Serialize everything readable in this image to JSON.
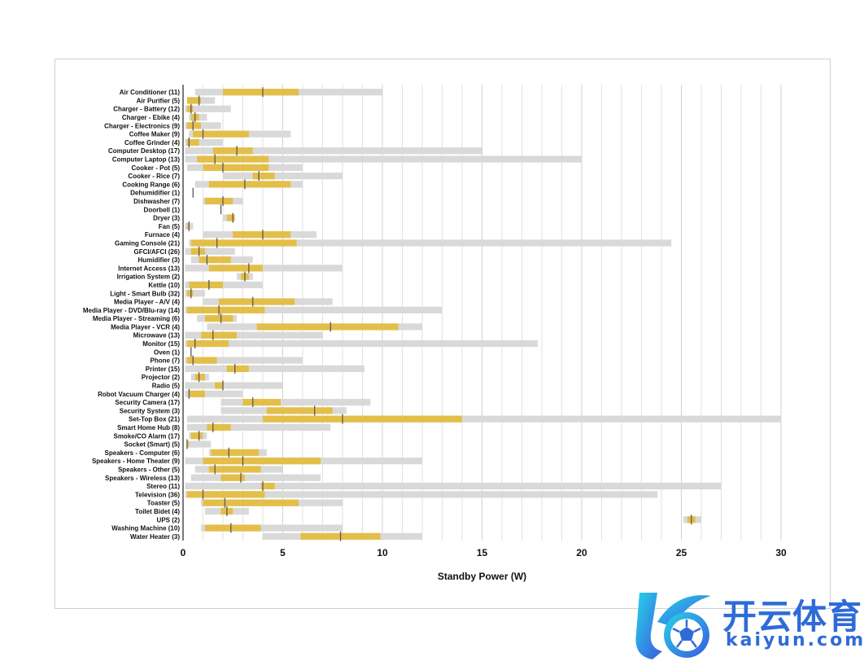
{
  "chart_data": {
    "type": "bar",
    "xlabel": "Standby Power (W)",
    "xlim": [
      0,
      30
    ],
    "xticks": [
      0,
      5,
      10,
      15,
      20,
      25,
      30
    ],
    "grid": "vertical gridlines at every 1 W",
    "colors": {
      "range": "#d9d9d9",
      "iqr": "#e3bf4a",
      "median": "#5a5a5a",
      "grid": "#e2e2e2"
    },
    "series_description": [
      "range (min–max)",
      "interquartile range",
      "median"
    ],
    "categories": [
      {
        "label": "Air Conditioner (11)",
        "min": 0.6,
        "q1": 2.0,
        "median": 4.0,
        "q3": 5.8,
        "max": 10.0
      },
      {
        "label": "Air Purifier (5)",
        "min": 0.2,
        "q1": 0.2,
        "median": 0.8,
        "q3": 0.9,
        "max": 1.6
      },
      {
        "label": "Charger - Battery (12)",
        "min": 0.1,
        "q1": 0.2,
        "median": 0.4,
        "q3": 0.5,
        "max": 2.4
      },
      {
        "label": "Charger - Ebike (4)",
        "min": 0.3,
        "q1": 0.4,
        "median": 0.6,
        "q3": 0.8,
        "max": 1.2
      },
      {
        "label": "Charger - Electronics (9)",
        "min": 0.1,
        "q1": 0.2,
        "median": 0.5,
        "q3": 0.9,
        "max": 1.9
      },
      {
        "label": "Coffee Maker (9)",
        "min": 0.3,
        "q1": 0.5,
        "median": 1.0,
        "q3": 3.3,
        "max": 5.4
      },
      {
        "label": "Coffee Grinder (4)",
        "min": 0.1,
        "q1": 0.2,
        "median": 0.3,
        "q3": 0.8,
        "max": 2.0
      },
      {
        "label": "Computer Desktop (17)",
        "min": 0.1,
        "q1": 1.5,
        "median": 2.7,
        "q3": 3.5,
        "max": 15.0
      },
      {
        "label": "Computer Laptop (13)",
        "min": 0.1,
        "q1": 0.7,
        "median": 1.6,
        "q3": 4.3,
        "max": 20.0
      },
      {
        "label": "Cooker - Pot (5)",
        "min": 0.2,
        "q1": 1.0,
        "median": 2.0,
        "q3": 4.3,
        "max": 6.0
      },
      {
        "label": "Cooker - Rice (7)",
        "min": 2.0,
        "q1": 3.5,
        "median": 3.8,
        "q3": 4.6,
        "max": 8.0
      },
      {
        "label": "Cooking Range (6)",
        "min": 0.6,
        "q1": 1.3,
        "median": 3.1,
        "q3": 5.4,
        "max": 6.0
      },
      {
        "label": "Dehumidifier (1)",
        "min": 0.5,
        "q1": 0.5,
        "median": 0.5,
        "q3": 0.5,
        "max": 0.5
      },
      {
        "label": "Dishwasher (7)",
        "min": 1.0,
        "q1": 1.1,
        "median": 2.0,
        "q3": 2.5,
        "max": 3.0
      },
      {
        "label": "Doorbell (1)",
        "min": 1.9,
        "q1": 1.9,
        "median": 1.9,
        "q3": 1.9,
        "max": 1.9
      },
      {
        "label": "Dryer (3)",
        "min": 2.0,
        "q1": 2.2,
        "median": 2.5,
        "q3": 2.6,
        "max": 2.6
      },
      {
        "label": "Fan (5)",
        "min": 0.1,
        "q1": 0.2,
        "median": 0.3,
        "q3": 0.3,
        "max": 0.5
      },
      {
        "label": "Furnace (4)",
        "min": 1.0,
        "q1": 2.5,
        "median": 4.0,
        "q3": 5.4,
        "max": 6.7
      },
      {
        "label": "Gaming Console (21)",
        "min": 0.3,
        "q1": 0.4,
        "median": 1.7,
        "q3": 5.7,
        "max": 24.5
      },
      {
        "label": "GFCI/AFCI (26)",
        "min": 0.1,
        "q1": 0.4,
        "median": 0.8,
        "q3": 1.1,
        "max": 2.6
      },
      {
        "label": "Humidifier (3)",
        "min": 0.4,
        "q1": 0.8,
        "median": 1.2,
        "q3": 2.4,
        "max": 3.5
      },
      {
        "label": "Internet Access (13)",
        "min": 0.1,
        "q1": 1.3,
        "median": 3.3,
        "q3": 4.0,
        "max": 8.0
      },
      {
        "label": "Irrigation System (2)",
        "min": 2.7,
        "q1": 2.9,
        "median": 3.1,
        "q3": 3.3,
        "max": 3.5
      },
      {
        "label": "Kettle (10)",
        "min": 0.1,
        "q1": 0.3,
        "median": 1.3,
        "q3": 2.0,
        "max": 4.0
      },
      {
        "label": "Light - Smart Bulb (32)",
        "min": 0.1,
        "q1": 0.2,
        "median": 0.4,
        "q3": 0.5,
        "max": 1.1
      },
      {
        "label": "Media Player - A/V (4)",
        "min": 1.0,
        "q1": 1.8,
        "median": 3.5,
        "q3": 5.6,
        "max": 7.5
      },
      {
        "label": "Media Player - DVD/Blu-ray (14)",
        "min": 0.1,
        "q1": 0.2,
        "median": 1.8,
        "q3": 4.1,
        "max": 13.0
      },
      {
        "label": "Media Player - Streaming (6)",
        "min": 0.7,
        "q1": 1.1,
        "median": 1.9,
        "q3": 2.5,
        "max": 2.7
      },
      {
        "label": "Media Player - VCR (4)",
        "min": 1.2,
        "q1": 3.7,
        "median": 7.4,
        "q3": 10.8,
        "max": 12.0
      },
      {
        "label": "Microwave (13)",
        "min": 0.1,
        "q1": 0.9,
        "median": 1.5,
        "q3": 2.7,
        "max": 7.0
      },
      {
        "label": "Monitor (15)",
        "min": 0.1,
        "q1": 0.2,
        "median": 0.6,
        "q3": 2.3,
        "max": 17.8
      },
      {
        "label": "Oven (1)",
        "min": 0.4,
        "q1": 0.4,
        "median": 0.4,
        "q3": 0.4,
        "max": 0.4
      },
      {
        "label": "Phone (7)",
        "min": 0.1,
        "q1": 0.2,
        "median": 0.5,
        "q3": 1.7,
        "max": 6.0
      },
      {
        "label": "Printer (15)",
        "min": 0.1,
        "q1": 2.2,
        "median": 2.6,
        "q3": 3.3,
        "max": 9.1
      },
      {
        "label": "Projector (2)",
        "min": 0.4,
        "q1": 0.6,
        "median": 0.8,
        "q3": 1.1,
        "max": 1.3
      },
      {
        "label": "Radio (5)",
        "min": 0.1,
        "q1": 1.6,
        "median": 2.0,
        "q3": 2.0,
        "max": 5.0
      },
      {
        "label": "Robot Vacuum Charger (4)",
        "min": 0.1,
        "q1": 0.3,
        "median": 0.3,
        "q3": 1.1,
        "max": 3.0
      },
      {
        "label": "Security Camera (17)",
        "min": 1.9,
        "q1": 3.0,
        "median": 3.5,
        "q3": 4.9,
        "max": 9.4
      },
      {
        "label": "Security System (3)",
        "min": 1.9,
        "q1": 4.2,
        "median": 6.6,
        "q3": 7.5,
        "max": 8.2
      },
      {
        "label": "Set-Top Box (21)",
        "min": 0.2,
        "q1": 4.0,
        "median": 8.0,
        "q3": 14.0,
        "max": 30.0
      },
      {
        "label": "Smart Home Hub (8)",
        "min": 0.2,
        "q1": 1.2,
        "median": 1.5,
        "q3": 2.4,
        "max": 7.4
      },
      {
        "label": "Smoke/CO Alarm (17)",
        "min": 0.3,
        "q1": 0.4,
        "median": 0.8,
        "q3": 1.0,
        "max": 1.2
      },
      {
        "label": "Socket (Smart) (5)",
        "min": 0.2,
        "q1": 0.2,
        "median": 0.2,
        "q3": 0.3,
        "max": 1.4
      },
      {
        "label": "Speakers - Computer (6)",
        "min": 1.3,
        "q1": 1.4,
        "median": 2.3,
        "q3": 3.8,
        "max": 4.2
      },
      {
        "label": "Speakers - Home Theater (9)",
        "min": 0.1,
        "q1": 1.0,
        "median": 3.0,
        "q3": 6.9,
        "max": 12.0
      },
      {
        "label": "Speakers - Other (5)",
        "min": 0.6,
        "q1": 1.3,
        "median": 1.6,
        "q3": 3.9,
        "max": 5.0
      },
      {
        "label": "Speakers - Wireless (13)",
        "min": 0.4,
        "q1": 1.9,
        "median": 2.9,
        "q3": 3.1,
        "max": 6.9
      },
      {
        "label": "Stereo (11)",
        "min": 0.1,
        "q1": 3.9,
        "median": 4.0,
        "q3": 4.6,
        "max": 27.0
      },
      {
        "label": "Television (36)",
        "min": 0.1,
        "q1": 0.2,
        "median": 1.0,
        "q3": 4.1,
        "max": 23.8
      },
      {
        "label": "Toaster (5)",
        "min": 0.9,
        "q1": 1.0,
        "median": 2.1,
        "q3": 5.8,
        "max": 8.0
      },
      {
        "label": "Toilet Bidet (4)",
        "min": 1.1,
        "q1": 1.9,
        "median": 2.2,
        "q3": 2.5,
        "max": 3.3
      },
      {
        "label": "UPS (2)",
        "min": 25.1,
        "q1": 25.3,
        "median": 25.5,
        "q3": 25.7,
        "max": 26.0
      },
      {
        "label": "Washing Machine (10)",
        "min": 0.9,
        "q1": 1.1,
        "median": 2.4,
        "q3": 3.9,
        "max": 8.0
      },
      {
        "label": "Water Heater (3)",
        "min": 4.0,
        "q1": 5.9,
        "median": 7.9,
        "q3": 9.9,
        "max": 12.0
      }
    ]
  },
  "logo": {
    "chinese_text": "开云体育",
    "latin_text": "kaiyun.com",
    "color": "#2f6bd8",
    "icon": "soccer-ball-k-logo-icon"
  }
}
